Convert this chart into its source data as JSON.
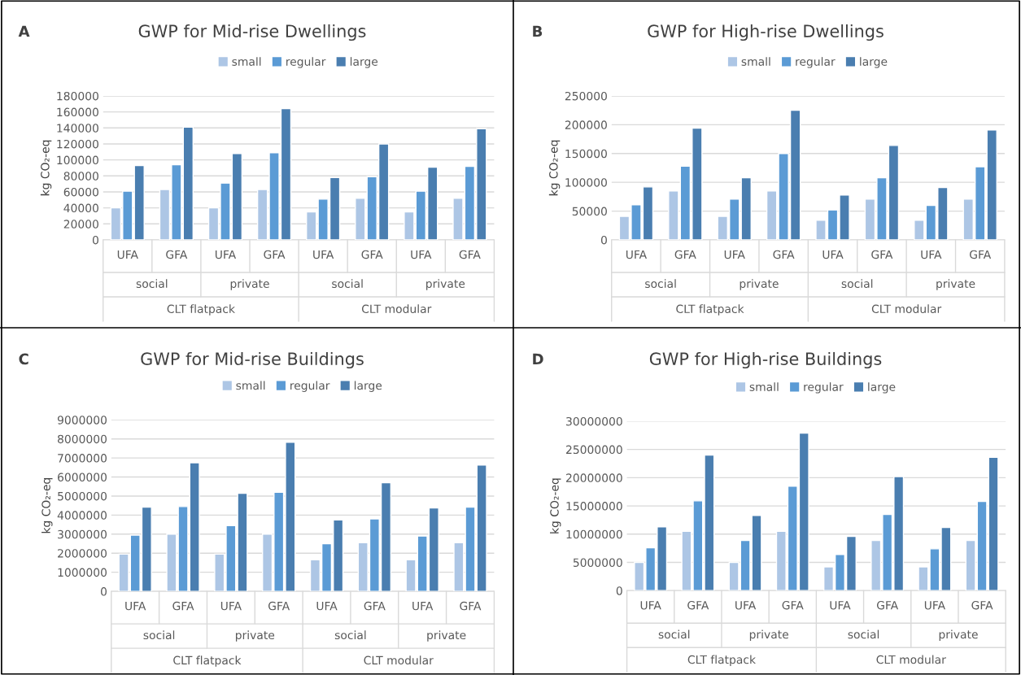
{
  "chart_data": [
    {
      "type": "bar",
      "title": "GWP for Mid-rise Dwellings",
      "ylabel": "kg CO₂-eq",
      "categories": [
        "UFA",
        "GFA",
        "UFA",
        "GFA",
        "UFA",
        "GFA",
        "UFA",
        "GFA"
      ],
      "series": [
        {
          "name": "small",
          "color": "#adc6e5",
          "values": [
            40000,
            63000,
            40000,
            63000,
            35000,
            52000,
            35000,
            52000
          ]
        },
        {
          "name": "regular",
          "color": "#5b9bd5",
          "values": [
            61000,
            94000,
            71000,
            109000,
            51000,
            79000,
            61000,
            92000
          ]
        },
        {
          "name": "large",
          "color": "#4a7eb0",
          "values": [
            93000,
            141000,
            108000,
            164000,
            78000,
            120000,
            91000,
            139000
          ]
        }
      ],
      "ylim": [
        0,
        180000
      ],
      "yticks": [
        0,
        20000,
        40000,
        60000,
        80000,
        100000,
        120000,
        140000,
        160000,
        180000
      ],
      "grid": "y",
      "legend": "top",
      "annotations": [
        "A",
        "social",
        "private",
        "social",
        "private",
        "CLT flatpack",
        "CLT modular"
      ]
    },
    {
      "type": "bar",
      "title": "GWP for High-rise Dwellings",
      "ylabel": "kg CO₂-eq",
      "categories": [
        "UFA",
        "GFA",
        "UFA",
        "GFA",
        "UFA",
        "GFA",
        "UFA",
        "GFA"
      ],
      "series": [
        {
          "name": "small",
          "color": "#adc6e5",
          "values": [
            41000,
            85000,
            41000,
            85000,
            34000,
            71000,
            34000,
            71000
          ]
        },
        {
          "name": "regular",
          "color": "#5b9bd5",
          "values": [
            61000,
            128000,
            71000,
            150000,
            52000,
            108000,
            60000,
            127000
          ]
        },
        {
          "name": "large",
          "color": "#4a7eb0",
          "values": [
            92000,
            194000,
            108000,
            225000,
            78000,
            164000,
            91000,
            191000
          ]
        }
      ],
      "ylim": [
        0,
        250000
      ],
      "yticks": [
        0,
        50000,
        100000,
        150000,
        200000,
        250000
      ],
      "grid": "y",
      "legend": "top",
      "annotations": [
        "B",
        "social",
        "private",
        "social",
        "private",
        "CLT flatpack",
        "CLT modular"
      ]
    },
    {
      "type": "bar",
      "title": "GWP for Mid-rise Buildings",
      "ylabel": "kg CO₂-eq",
      "categories": [
        "UFA",
        "GFA",
        "UFA",
        "GFA",
        "UFA",
        "GFA",
        "UFA",
        "GFA"
      ],
      "series": [
        {
          "name": "small",
          "color": "#adc6e5",
          "values": [
            1950000,
            3000000,
            1950000,
            3000000,
            1650000,
            2550000,
            1650000,
            2550000
          ]
        },
        {
          "name": "regular",
          "color": "#5b9bd5",
          "values": [
            2950000,
            4450000,
            3450000,
            5200000,
            2500000,
            3800000,
            2900000,
            4420000
          ]
        },
        {
          "name": "large",
          "color": "#4a7eb0",
          "values": [
            4420000,
            6750000,
            5150000,
            7820000,
            3750000,
            5700000,
            4380000,
            6630000
          ]
        }
      ],
      "ylim": [
        0,
        9000000
      ],
      "yticks": [
        0,
        1000000,
        2000000,
        3000000,
        4000000,
        5000000,
        6000000,
        7000000,
        8000000,
        9000000
      ],
      "grid": "y",
      "legend": "top",
      "annotations": [
        "C",
        "social",
        "private",
        "social",
        "private",
        "CLT flatpack",
        "CLT modular"
      ]
    },
    {
      "type": "bar",
      "title": "GWP for High-rise Buildings",
      "ylabel": "kg CO₂-eq",
      "categories": [
        "UFA",
        "GFA",
        "UFA",
        "GFA",
        "UFA",
        "GFA",
        "UFA",
        "GFA"
      ],
      "series": [
        {
          "name": "small",
          "color": "#adc6e5",
          "values": [
            5000000,
            10500000,
            5000000,
            10500000,
            4200000,
            8900000,
            4200000,
            8900000
          ]
        },
        {
          "name": "regular",
          "color": "#5b9bd5",
          "values": [
            7600000,
            15900000,
            8900000,
            18500000,
            6400000,
            13500000,
            7400000,
            15800000
          ]
        },
        {
          "name": "large",
          "color": "#4a7eb0",
          "values": [
            11300000,
            24000000,
            13300000,
            27900000,
            9600000,
            20200000,
            11200000,
            23600000
          ]
        }
      ],
      "ylim": [
        0,
        30000000
      ],
      "yticks": [
        0,
        5000000,
        10000000,
        15000000,
        20000000,
        25000000,
        30000000
      ],
      "grid": "y",
      "legend": "top",
      "annotations": [
        "D",
        "social",
        "private",
        "social",
        "private",
        "CLT flatpack",
        "CLT modular"
      ]
    }
  ]
}
